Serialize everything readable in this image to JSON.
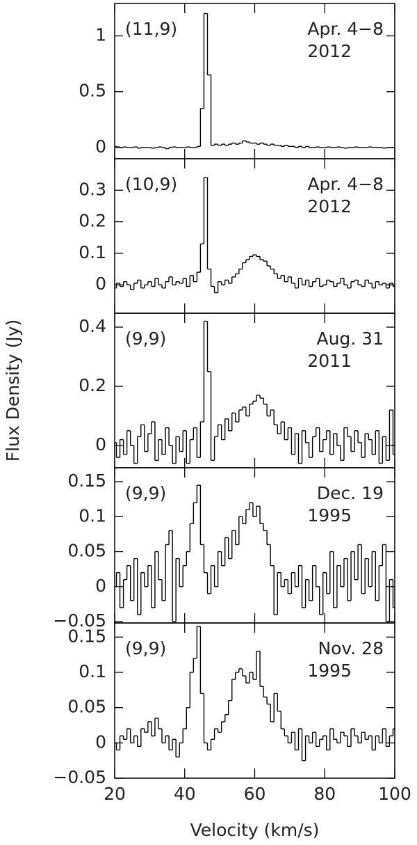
{
  "chart_data": [
    {
      "type": "step",
      "transition": "(11,9)",
      "date": "Apr. 4−8",
      "year": "2012",
      "color": "#000000",
      "xlim": [
        20,
        100
      ],
      "xticks": [
        20,
        40,
        60,
        80,
        100
      ],
      "ylim": [
        -0.1,
        1.29
      ],
      "yticks": [
        0,
        0.5,
        1
      ],
      "x": [
        20,
        21,
        22,
        23,
        24,
        25,
        26,
        27,
        28,
        29,
        30,
        31,
        32,
        33,
        34,
        35,
        36,
        37,
        38,
        39,
        40,
        41,
        42,
        43,
        44,
        45,
        46,
        47,
        48,
        49,
        50,
        51,
        52,
        53,
        54,
        55,
        56,
        57,
        58,
        59,
        60,
        61,
        62,
        63,
        64,
        65,
        66,
        67,
        68,
        69,
        70,
        71,
        72,
        73,
        74,
        75,
        76,
        77,
        78,
        79,
        80,
        81,
        82,
        83,
        84,
        85,
        86,
        87,
        88,
        89,
        90,
        91,
        92,
        93,
        94,
        95,
        96,
        97,
        98,
        99,
        100
      ],
      "values": [
        0.01,
        0.005,
        0,
        0.005,
        0,
        0,
        0.005,
        -0.005,
        0,
        0,
        0,
        -0.005,
        0,
        0.005,
        0,
        -0.01,
        0,
        0.005,
        0,
        0,
        0,
        0.005,
        0,
        0,
        0.01,
        0.35,
        1.2,
        0.65,
        0.02,
        0.03,
        0.02,
        0.03,
        0.02,
        0.03,
        0.04,
        0.03,
        0.04,
        0.06,
        0.05,
        0.04,
        0.04,
        0.03,
        0.04,
        0.03,
        0.02,
        0.03,
        0.02,
        0.02,
        0.01,
        0.02,
        0.01,
        0.01,
        0,
        0.01,
        0,
        0.01,
        0,
        0,
        0.005,
        0,
        0,
        0.005,
        0,
        0,
        0.005,
        0,
        -0.005,
        0,
        0,
        0.005,
        0,
        0,
        0,
        0.005,
        0,
        0,
        0,
        -0.005,
        0,
        0,
        0
      ]
    },
    {
      "type": "step",
      "transition": "(10,9)",
      "date": "Apr. 4−8",
      "year": "2012",
      "color": "#000000",
      "xlim": [
        20,
        100
      ],
      "xticks": [
        20,
        40,
        60,
        80,
        100
      ],
      "ylim": [
        -0.09,
        0.4
      ],
      "yticks": [
        0,
        0.1,
        0.2,
        0.3
      ],
      "x": [
        20,
        21,
        22,
        23,
        24,
        25,
        26,
        27,
        28,
        29,
        30,
        31,
        32,
        33,
        34,
        35,
        36,
        37,
        38,
        39,
        40,
        41,
        42,
        43,
        44,
        45,
        46,
        47,
        48,
        49,
        50,
        51,
        52,
        53,
        54,
        55,
        56,
        57,
        58,
        59,
        60,
        61,
        62,
        63,
        64,
        65,
        66,
        67,
        68,
        69,
        70,
        71,
        72,
        73,
        74,
        75,
        76,
        77,
        78,
        79,
        80,
        81,
        82,
        83,
        84,
        85,
        86,
        87,
        88,
        89,
        90,
        91,
        92,
        93,
        94,
        95,
        96,
        97,
        98,
        99,
        100
      ],
      "values": [
        -0.01,
        0.005,
        -0.005,
        0.01,
        0,
        -0.015,
        0.005,
        0.015,
        -0.01,
        0,
        0.01,
        -0.005,
        0.02,
        0,
        -0.01,
        0.01,
        0.025,
        0,
        0.01,
        0.005,
        0.02,
        -0.005,
        0.03,
        0.01,
        0.04,
        0.13,
        0.34,
        0.05,
        -0.005,
        -0.025,
        0.01,
        0,
        0.015,
        0.005,
        0.025,
        0.035,
        0.05,
        0.07,
        0.08,
        0.09,
        0.095,
        0.09,
        0.08,
        0.075,
        0.06,
        0.05,
        0.035,
        0.02,
        0.03,
        0.01,
        0.025,
        0.005,
        -0.01,
        0.02,
        0,
        0.015,
        -0.005,
        0.01,
        0.02,
        -0.005,
        0,
        0.015,
        0.01,
        -0.005,
        0.005,
        0.02,
        0,
        -0.01,
        0.01,
        0.015,
        0,
        -0.005,
        0.015,
        0.005,
        -0.01,
        0.01,
        0,
        0.005,
        -0.01,
        0.005,
        -0.005
      ]
    },
    {
      "type": "step",
      "transition": "(9,9)",
      "date": "Aug. 31",
      "year": "2011",
      "color": "#000000",
      "ylabel": "Flux Density (Jy)",
      "xlim": [
        20,
        100
      ],
      "xticks": [
        20,
        40,
        60,
        80,
        100
      ],
      "ylim": [
        -0.075,
        0.447
      ],
      "yticks": [
        0,
        0.2,
        0.4
      ],
      "x": [
        20,
        21,
        22,
        23,
        24,
        25,
        26,
        27,
        28,
        29,
        30,
        31,
        32,
        33,
        34,
        35,
        36,
        37,
        38,
        39,
        40,
        41,
        42,
        43,
        44,
        45,
        46,
        47,
        48,
        49,
        50,
        51,
        52,
        53,
        54,
        55,
        56,
        57,
        58,
        59,
        60,
        61,
        62,
        63,
        64,
        65,
        66,
        67,
        68,
        69,
        70,
        71,
        72,
        73,
        74,
        75,
        76,
        77,
        78,
        79,
        80,
        81,
        82,
        83,
        84,
        85,
        86,
        87,
        88,
        89,
        90,
        91,
        92,
        93,
        94,
        95,
        96,
        97,
        98,
        99,
        100
      ],
      "values": [
        0.01,
        -0.04,
        0.02,
        -0.03,
        0.05,
        0,
        -0.06,
        0.03,
        0.07,
        -0.02,
        0.04,
        0.08,
        -0.05,
        0.02,
        -0.03,
        0.06,
        0,
        -0.06,
        0.03,
        -0.02,
        0.05,
        -0.06,
        0.02,
        0.06,
        -0.04,
        0.08,
        0.42,
        0.25,
        -0.05,
        0.03,
        0.07,
        0.02,
        0.09,
        0.05,
        0.11,
        0.08,
        0.12,
        0.13,
        0.1,
        0.14,
        0.15,
        0.17,
        0.16,
        0.14,
        0.1,
        0.12,
        0.07,
        0.04,
        0.08,
        0.02,
        0.06,
        -0.03,
        0.04,
        -0.06,
        0.05,
        0.01,
        -0.04,
        0.03,
        0.06,
        -0.02,
        0.02,
        0.05,
        -0.03,
        0.04,
        0,
        -0.05,
        0.06,
        0.03,
        -0.02,
        0.05,
        0.01,
        -0.04,
        0.04,
        0.02,
        -0.03,
        0.05,
        -0.06,
        0.03,
        -0.05,
        0.12,
        -0.03
      ]
    },
    {
      "type": "step",
      "transition": "(9,9)",
      "date": "Dec. 19",
      "year": "1995",
      "color": "#000000",
      "xlim": [
        20,
        100
      ],
      "xticks": [
        20,
        40,
        60,
        80,
        100
      ],
      "ylim": [
        -0.052,
        0.17
      ],
      "yticks": [
        {
          "value": -0.05,
          "label": "−0.05"
        },
        0,
        0.05,
        0.1,
        0.15
      ],
      "x": [
        20,
        21,
        22,
        23,
        24,
        25,
        26,
        27,
        28,
        29,
        30,
        31,
        32,
        33,
        34,
        35,
        36,
        37,
        38,
        39,
        40,
        41,
        42,
        43,
        44,
        45,
        46,
        47,
        48,
        49,
        50,
        51,
        52,
        53,
        54,
        55,
        56,
        57,
        58,
        59,
        60,
        61,
        62,
        63,
        64,
        65,
        66,
        67,
        68,
        69,
        70,
        71,
        72,
        73,
        74,
        75,
        76,
        77,
        78,
        79,
        80,
        81,
        82,
        83,
        84,
        85,
        86,
        87,
        88,
        89,
        90,
        91,
        92,
        93,
        94,
        95,
        96,
        97,
        98,
        99,
        100
      ],
      "values": [
        0,
        0.02,
        -0.03,
        0.01,
        0.03,
        -0.02,
        0.04,
        -0.04,
        0.02,
        0,
        0.03,
        -0.03,
        0.05,
        0.01,
        -0.02,
        0.06,
        0.08,
        -0.05,
        0.04,
        0,
        0.03,
        0.05,
        0.09,
        0.12,
        0.145,
        0.06,
        0.02,
        -0.01,
        0.03,
        0,
        0.05,
        0.03,
        0.07,
        0.04,
        0.08,
        0.06,
        0.1,
        0.09,
        0.11,
        0.12,
        0.1,
        0.115,
        0.09,
        0.08,
        0.06,
        0.03,
        -0.04,
        0.02,
        0,
        0.01,
        -0.01,
        0.02,
        0,
        0.03,
        -0.03,
        0.01,
        -0.02,
        0.03,
        0,
        -0.04,
        0.02,
        -0.01,
        0.05,
        -0.03,
        0.03,
        0,
        0.04,
        -0.02,
        0.05,
        0.01,
        0.06,
        -0.01,
        0.04,
        0,
        0.05,
        -0.02,
        0.03,
        0.06,
        -0.05,
        0.01,
        -0.03
      ]
    },
    {
      "type": "step",
      "transition": "(9,9)",
      "date": "Nov. 28",
      "year": "1995",
      "color": "#000000",
      "xlabel": "Velocity (km/s)",
      "xlim": [
        20,
        100
      ],
      "xticks": [
        20,
        40,
        60,
        80,
        100
      ],
      "ylim": [
        -0.05,
        0.17
      ],
      "yticks": [
        {
          "value": -0.05,
          "label": "−0.05"
        },
        0,
        0.05,
        0.1,
        0.15
      ],
      "x": [
        20,
        21,
        22,
        23,
        24,
        25,
        26,
        27,
        28,
        29,
        30,
        31,
        32,
        33,
        34,
        35,
        36,
        37,
        38,
        39,
        40,
        41,
        42,
        43,
        44,
        45,
        46,
        47,
        48,
        49,
        50,
        51,
        52,
        53,
        54,
        55,
        56,
        57,
        58,
        59,
        60,
        61,
        62,
        63,
        64,
        65,
        66,
        67,
        68,
        69,
        70,
        71,
        72,
        73,
        74,
        75,
        76,
        77,
        78,
        79,
        80,
        81,
        82,
        83,
        84,
        85,
        86,
        87,
        88,
        89,
        90,
        91,
        92,
        93,
        94,
        95,
        96,
        97,
        98,
        99,
        100
      ],
      "values": [
        0,
        -0.01,
        0.01,
        0.005,
        0.02,
        0,
        0.01,
        -0.005,
        0.02,
        0.015,
        0.03,
        0.01,
        0.035,
        0.02,
        0,
        0.01,
        -0.01,
        0.005,
        -0.02,
        0,
        0.02,
        0.05,
        0.1,
        0.12,
        0.165,
        0.07,
        0,
        -0.01,
        0.005,
        0.02,
        0.015,
        0.03,
        0.04,
        0.06,
        0.09,
        0.1,
        0.105,
        0.095,
        0.085,
        0.1,
        0.09,
        0.13,
        0.08,
        0.065,
        0.055,
        0.03,
        0.07,
        0.045,
        0.02,
        0.01,
        0,
        0.015,
        -0.01,
        0.02,
        -0.025,
        0.01,
        0,
        0.015,
        -0.005,
        0.005,
        0.01,
        -0.01,
        0.02,
        0.005,
        0,
        0.015,
        0.01,
        -0.005,
        0.02,
        0.01,
        0,
        0.015,
        0.005,
        0.01,
        -0.01,
        0.01,
        0,
        0.02,
        -0.005,
        0.01,
        0.02
      ]
    }
  ]
}
